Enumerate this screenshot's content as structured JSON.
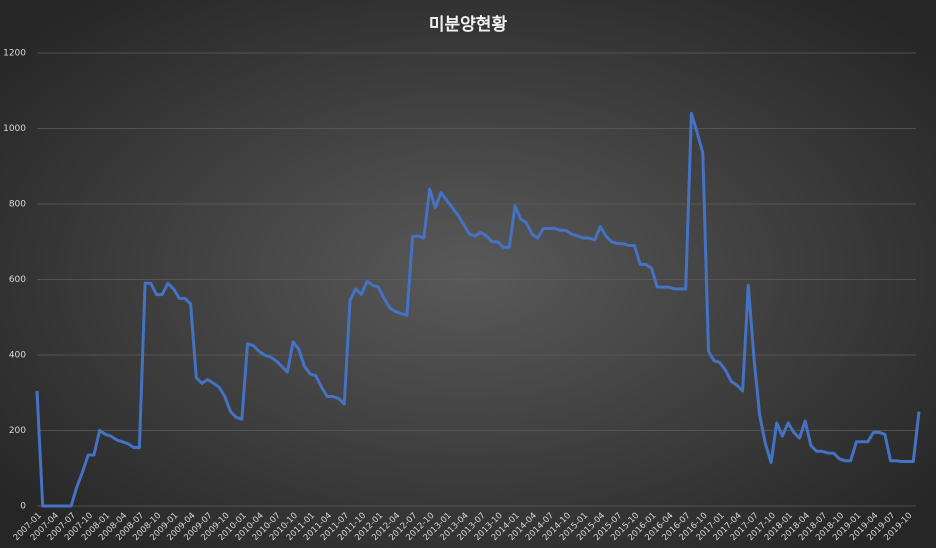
{
  "chart_data": {
    "type": "line",
    "title": "미분양현황",
    "categories": [
      "2007-01",
      null,
      null,
      "2007-04",
      null,
      null,
      "2007-07",
      null,
      null,
      "2007-10",
      null,
      null,
      "2008-01",
      null,
      null,
      "2008-04",
      null,
      null,
      "2008-07",
      null,
      null,
      "2008-10",
      null,
      null,
      "2009-01",
      null,
      null,
      "2009-04",
      null,
      null,
      "2009-07",
      null,
      null,
      "2009-10",
      null,
      null,
      "2010-01",
      null,
      null,
      "2010-04",
      null,
      null,
      "2010-07",
      null,
      null,
      "2010-10",
      null,
      null,
      "2011-01",
      null,
      null,
      "2011-04",
      null,
      null,
      "2011-07",
      null,
      null,
      "2011-10",
      null,
      null,
      "2012-01",
      null,
      null,
      "2012-04",
      null,
      null,
      "2012-07",
      null,
      null,
      "2012-10",
      null,
      null,
      "2013-01",
      null,
      null,
      "2013-04",
      null,
      null,
      "2013-07",
      null,
      null,
      "2013-10",
      null,
      null,
      "2014-01",
      null,
      null,
      "2014-04",
      null,
      null,
      "2014-07",
      null,
      null,
      "2014-10",
      null,
      null,
      "2015-01",
      null,
      null,
      "2015-04",
      null,
      null,
      "2015-07",
      null,
      null,
      "2015-10",
      null,
      null,
      "2016-01",
      null,
      null,
      "2016-04",
      null,
      null,
      "2016-07",
      null,
      null,
      "2016-10",
      null,
      null,
      "2017-01",
      null,
      null,
      "2017-04",
      null,
      null,
      "2017-07",
      null,
      null,
      "2017-10",
      null,
      null,
      "2018-01",
      null,
      null,
      "2018-04",
      null,
      null,
      "2018-07",
      null,
      null,
      "2018-10",
      null,
      null,
      "2019-01",
      null,
      null,
      "2019-04",
      null,
      null,
      "2019-07",
      null,
      null,
      "2019-10",
      null,
      null
    ],
    "values": [
      305,
      0,
      0,
      0,
      0,
      0,
      0,
      50,
      90,
      135,
      135,
      200,
      190,
      185,
      175,
      170,
      165,
      155,
      155,
      590,
      590,
      560,
      560,
      590,
      575,
      550,
      550,
      535,
      340,
      325,
      335,
      325,
      315,
      290,
      250,
      235,
      230,
      430,
      425,
      410,
      400,
      395,
      385,
      370,
      355,
      435,
      415,
      370,
      350,
      345,
      315,
      290,
      290,
      285,
      270,
      545,
      575,
      560,
      595,
      585,
      580,
      550,
      525,
      515,
      510,
      505,
      715,
      715,
      710,
      840,
      790,
      830,
      810,
      790,
      770,
      745,
      720,
      715,
      725,
      715,
      700,
      700,
      685,
      685,
      795,
      760,
      750,
      720,
      710,
      735,
      735,
      735,
      730,
      730,
      720,
      715,
      710,
      710,
      705,
      740,
      715,
      700,
      695,
      695,
      690,
      690,
      640,
      640,
      630,
      580,
      580,
      580,
      575,
      575,
      575,
      1040,
      990,
      935,
      410,
      385,
      380,
      360,
      330,
      320,
      305,
      585,
      390,
      240,
      165,
      115,
      220,
      185,
      220,
      195,
      180,
      225,
      160,
      145,
      145,
      140,
      140,
      125,
      120,
      120,
      170,
      170,
      170,
      195,
      195,
      190,
      120,
      120,
      118,
      118,
      118,
      250
    ],
    "color": "#4472c4",
    "ylim": [
      0,
      1200
    ],
    "yticks": [
      0,
      200,
      400,
      600,
      800,
      1000,
      1200
    ],
    "grid": true
  }
}
